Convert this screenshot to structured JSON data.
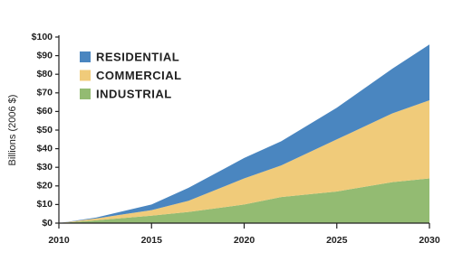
{
  "chart_data": {
    "type": "stacked_area",
    "y_label": "Billions (2006 $)",
    "x": [
      2010,
      2012,
      2015,
      2017,
      2020,
      2022,
      2025,
      2028,
      2030
    ],
    "series": [
      {
        "name": "INDUSTRIAL",
        "color": "#93bb72",
        "values": [
          0,
          1.5,
          4,
          6,
          10,
          14,
          17,
          22,
          24
        ]
      },
      {
        "name": "COMMERCIAL",
        "color": "#f0cb7a",
        "values": [
          0,
          1,
          3,
          6,
          14,
          17,
          28,
          37,
          42
        ]
      },
      {
        "name": "RESIDENTIAL",
        "color": "#4a86c0",
        "values": [
          0,
          0.5,
          3,
          7,
          11,
          13,
          17,
          24,
          30
        ]
      }
    ],
    "xlim": [
      2010,
      2030
    ],
    "xticks": [
      2010,
      2015,
      2020,
      2025,
      2030
    ],
    "ylim": [
      0,
      100
    ],
    "yticks": [
      {
        "value": 0,
        "label": "$0"
      },
      {
        "value": 10,
        "label": "$10"
      },
      {
        "value": 20,
        "label": "$20"
      },
      {
        "value": 30,
        "label": "$30"
      },
      {
        "value": 40,
        "label": "$40"
      },
      {
        "value": 50,
        "label": "$50"
      },
      {
        "value": 60,
        "label": "$60"
      },
      {
        "value": 70,
        "label": "$70"
      },
      {
        "value": 80,
        "label": "$80"
      },
      {
        "value": 90,
        "label": "$90"
      },
      {
        "value": 100,
        "label": "$100"
      }
    ],
    "grid": false,
    "legend": "upper left"
  }
}
